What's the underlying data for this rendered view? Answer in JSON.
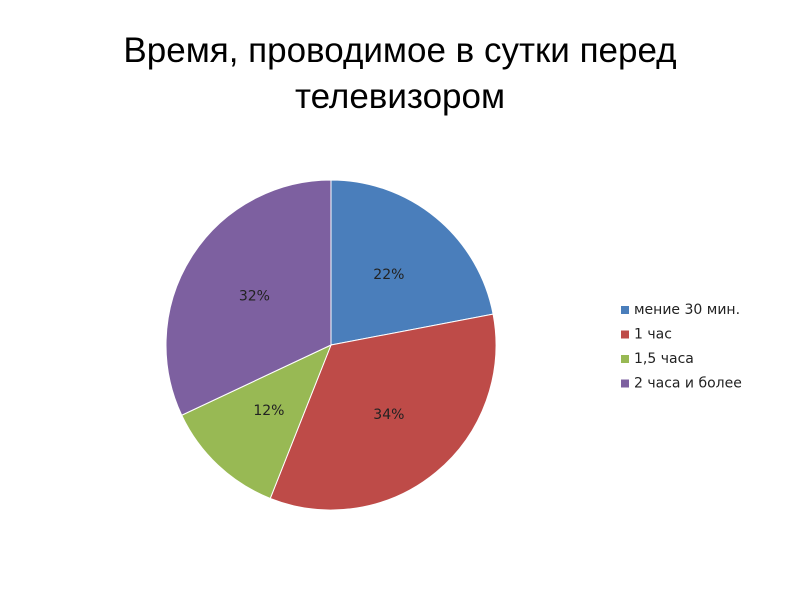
{
  "chart_data": {
    "type": "pie",
    "title": "Время, проводимое в сутки перед телевизором",
    "categories": [
      "мение 30 мин.",
      "1 час",
      "1,5 часа",
      "2 часа и более"
    ],
    "values": [
      22,
      34,
      12,
      32
    ],
    "value_labels": [
      "22%",
      "34%",
      "12%",
      "32%"
    ],
    "colors": [
      "#4a7ebb",
      "#be4b48",
      "#98b954",
      "#7d60a0"
    ],
    "legend": "right"
  }
}
